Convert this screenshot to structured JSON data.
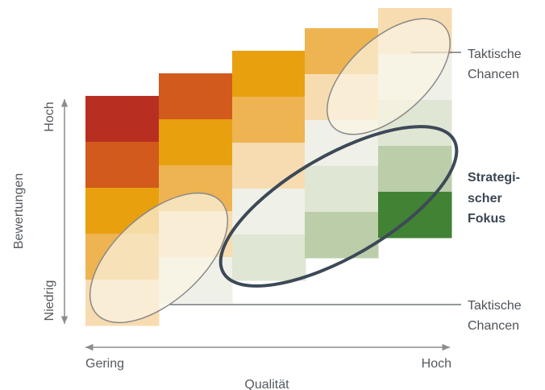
{
  "axes": {
    "x_label": "Qualität",
    "x_low": "Gering",
    "x_high": "Hoch",
    "y_label": "Bewertungen",
    "y_low": "Niedrig",
    "y_high": "Hoch"
  },
  "annotations": {
    "tactical_top": [
      "Taktische",
      "Chancen"
    ],
    "strategic": [
      "Strategi-",
      "scher",
      "Fokus"
    ],
    "tactical_bottom": [
      "Taktische",
      "Chancen"
    ]
  },
  "grid": {
    "columns": [
      {
        "cells": [
          "#b82f22",
          "#d15a1c",
          "#e8a00e",
          "#eeb452",
          "#f7dcb1"
        ]
      },
      {
        "cells": [
          "#d15a1c",
          "#e8a00e",
          "#eeb452",
          "#f7dcb1",
          "#eff0e8"
        ]
      },
      {
        "cells": [
          "#e8a00e",
          "#eeb452",
          "#f7dcb1",
          "#eff0e8",
          "#dfe6d3"
        ]
      },
      {
        "cells": [
          "#eeb452",
          "#f7dcb1",
          "#eff0e8",
          "#dfe6d3",
          "#bccdaa"
        ]
      },
      {
        "cells": [
          "#f7dcb1",
          "#eff0e8",
          "#dfe6d3",
          "#bccdaa",
          "#428234"
        ]
      }
    ]
  },
  "colors": {
    "axis": "#8c8c8c",
    "tactical_ellipse_stroke": "#8a8a8a",
    "tactical_ellipse_fill": "#fbf3e4",
    "strategic_ellipse_stroke": "#3d4957",
    "connector": "#555a5f"
  }
}
